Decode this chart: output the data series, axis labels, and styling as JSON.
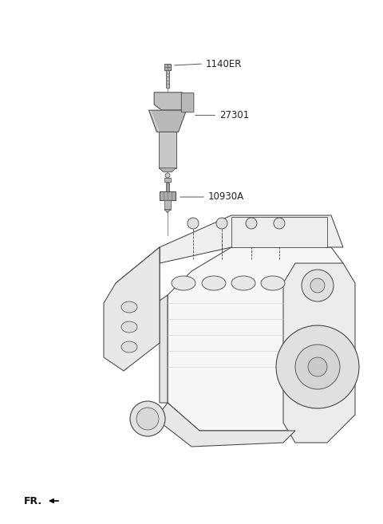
{
  "background_color": "#ffffff",
  "fig_width": 4.8,
  "fig_height": 6.57,
  "dpi": 100,
  "parts": [
    {
      "id": "1140ER",
      "label": "1140ER"
    },
    {
      "id": "27301",
      "label": "27301"
    },
    {
      "id": "10930A",
      "label": "10930A"
    }
  ],
  "label_fontsize": 8.5,
  "fr_label": "FR.",
  "fr_fontsize": 9,
  "lc": "#555555",
  "ec": "#333333"
}
